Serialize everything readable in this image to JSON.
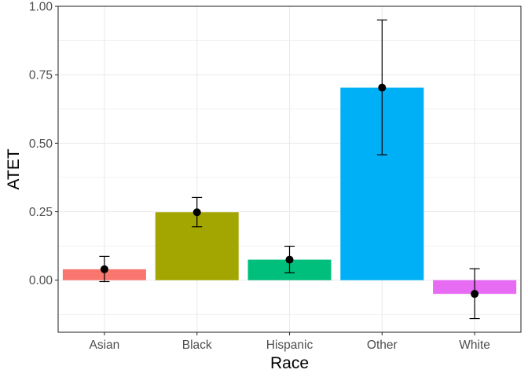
{
  "chart_data": {
    "type": "bar",
    "xlabel": "Race",
    "ylabel": "ATET",
    "categories": [
      "Asian",
      "Black",
      "Hispanic",
      "Other",
      "White"
    ],
    "values": [
      0.04,
      0.248,
      0.075,
      0.703,
      -0.05
    ],
    "error_lower": [
      -0.005,
      0.195,
      0.027,
      0.458,
      -0.14
    ],
    "error_upper": [
      0.087,
      0.302,
      0.124,
      0.95,
      0.042
    ],
    "colors": [
      "#F8766D",
      "#A3A500",
      "#00BF7D",
      "#00B0F6",
      "#E76BF3"
    ],
    "ylim": [
      -0.19,
      1.0
    ],
    "yticks": [
      0.0,
      0.25,
      0.5,
      0.75,
      1.0
    ],
    "ytick_labels": [
      "0.00",
      "0.25",
      "0.50",
      "0.75",
      "1.00"
    ],
    "grid": true,
    "legend": "none"
  }
}
